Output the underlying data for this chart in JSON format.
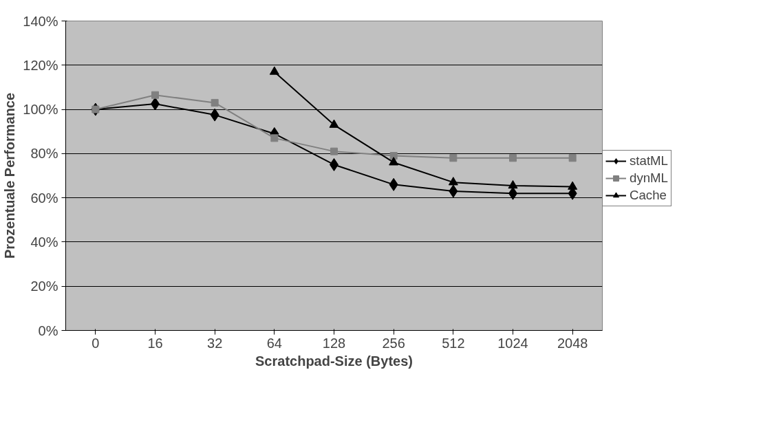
{
  "chart_data": {
    "type": "line",
    "xlabel": "Scratchpad-Size (Bytes)",
    "ylabel": "Prozentuale Performance",
    "categories": [
      "0",
      "16",
      "32",
      "64",
      "128",
      "256",
      "512",
      "1024",
      "2048"
    ],
    "series": [
      {
        "name": "statML",
        "color": "#000000",
        "marker": "diamond",
        "values": [
          100,
          102.5,
          97.5,
          89,
          75,
          66,
          63,
          62,
          62
        ]
      },
      {
        "name": "dynML",
        "color": "#808080",
        "marker": "square",
        "values": [
          100,
          106.5,
          103,
          87,
          81,
          79,
          78,
          78,
          78
        ]
      },
      {
        "name": "Cache",
        "color": "#000000",
        "marker": "triangle",
        "values": [
          null,
          null,
          null,
          117,
          93,
          76,
          67,
          65.5,
          65
        ]
      }
    ],
    "ylim": [
      0,
      140
    ],
    "yticks": [
      {
        "value": 0,
        "label": "0%"
      },
      {
        "value": 20,
        "label": "20%"
      },
      {
        "value": 40,
        "label": "40%"
      },
      {
        "value": 60,
        "label": "60%"
      },
      {
        "value": 80,
        "label": "80%"
      },
      {
        "value": 100,
        "label": "100%"
      },
      {
        "value": 120,
        "label": "120%"
      },
      {
        "value": 140,
        "label": "140%"
      }
    ],
    "grid": "y",
    "legend": "right",
    "line_style": "solid"
  }
}
